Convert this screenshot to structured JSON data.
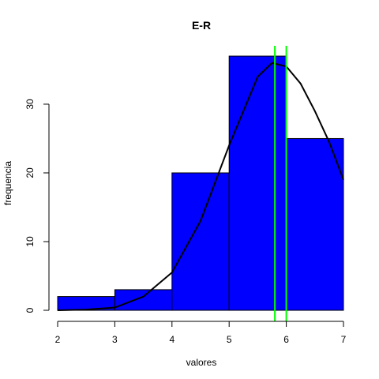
{
  "chart_data": {
    "type": "bar",
    "title": "E-R",
    "xlabel": "valores",
    "ylabel": "frequencia",
    "xlim": [
      2,
      7
    ],
    "ylim": [
      0,
      38.5
    ],
    "grid": false,
    "legend": "none",
    "x_ticks": [
      2,
      3,
      4,
      5,
      6,
      7
    ],
    "y_ticks": [
      0,
      10,
      20,
      30
    ],
    "bins": [
      {
        "from": 2,
        "to": 3,
        "count": 2
      },
      {
        "from": 3,
        "to": 4,
        "count": 3
      },
      {
        "from": 4,
        "to": 5,
        "count": 20
      },
      {
        "from": 5,
        "to": 6,
        "count": 37
      },
      {
        "from": 6,
        "to": 7,
        "count": 25
      }
    ],
    "bar_color": "#0000ff",
    "density_curve": {
      "color": "#000000",
      "x": [
        2.0,
        2.5,
        3.0,
        3.5,
        4.0,
        4.5,
        5.0,
        5.5,
        5.75,
        6.0,
        6.25,
        6.5,
        6.75,
        7.0
      ],
      "y": [
        0.0,
        0.1,
        0.4,
        2.0,
        5.5,
        13.0,
        24.0,
        34.0,
        36.0,
        35.5,
        33.0,
        29.0,
        24.5,
        19.0
      ]
    },
    "vertical_lines": [
      {
        "x": 5.8,
        "color": "#00ff00"
      },
      {
        "x": 6.0,
        "color": "#00ff00"
      }
    ]
  }
}
